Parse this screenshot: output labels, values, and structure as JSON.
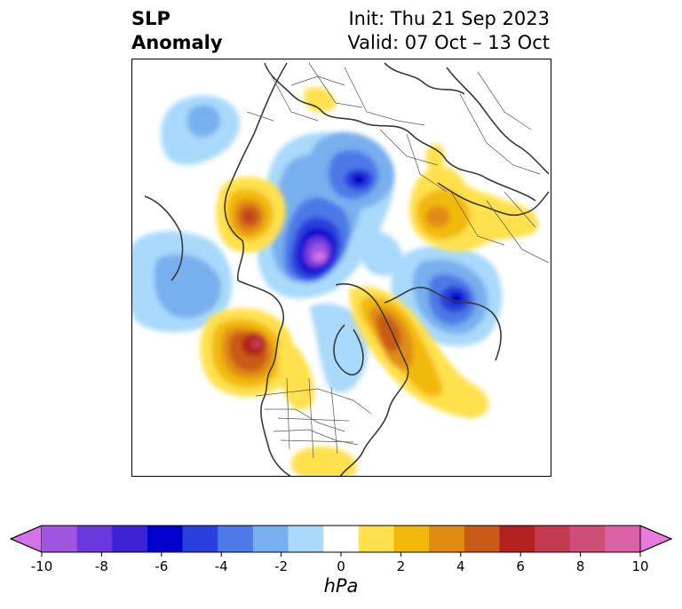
{
  "title": {
    "left_line1": "SLP",
    "left_line2": "Anomaly",
    "right_line1": "Init: Thu 21 Sep 2023",
    "right_line2": "Valid: 07 Oct – 13 Oct"
  },
  "map": {
    "projection": "north-polar-stereographic",
    "variable": "Sea level pressure anomaly",
    "anomaly_centers": [
      {
        "region": "central Arctic / north of Siberia",
        "value_hpa": -9,
        "sign": "negative"
      },
      {
        "region": "Sea of Okhotsk / Kamchatka",
        "value_hpa": -6,
        "sign": "negative"
      },
      {
        "region": "Scandinavia / Barents",
        "value_hpa": -5,
        "sign": "negative"
      },
      {
        "region": "western Europe / Atlantic",
        "value_hpa": -3,
        "sign": "negative"
      },
      {
        "region": "northwest Africa",
        "value_hpa": -2,
        "sign": "negative"
      },
      {
        "region": "Gulf of Alaska / NE Pacific",
        "value_hpa": 7,
        "sign": "positive"
      },
      {
        "region": "China / Mongolia",
        "value_hpa": 4,
        "sign": "positive"
      },
      {
        "region": "Iceland / Greenland Sea",
        "value_hpa": 5,
        "sign": "positive"
      },
      {
        "region": "Eastern Europe / Russia",
        "value_hpa": 3,
        "sign": "positive"
      },
      {
        "region": "Hudson Bay / Canada",
        "value_hpa": -2,
        "sign": "negative"
      },
      {
        "region": "Mexico",
        "value_hpa": 2,
        "sign": "positive"
      }
    ]
  },
  "colorbar": {
    "units": "hPa",
    "min": -10,
    "max": 10,
    "extend": "both",
    "tick_labels": [
      "-10",
      "-8",
      "-6",
      "-4",
      "-2",
      "0",
      "2",
      "4",
      "6",
      "8",
      "10"
    ],
    "colors": [
      "#d472e8",
      "#9e55e0",
      "#6a38dc",
      "#3f22d6",
      "#0000cd",
      "#2a40dc",
      "#4e79e8",
      "#78afee",
      "#a9d9fb",
      "#ffffff",
      "#ffe14d",
      "#f2b90a",
      "#e08c12",
      "#c95a18",
      "#b3221e",
      "#c23a50",
      "#cf4e78",
      "#dc62a8",
      "#e87ae0"
    ]
  }
}
